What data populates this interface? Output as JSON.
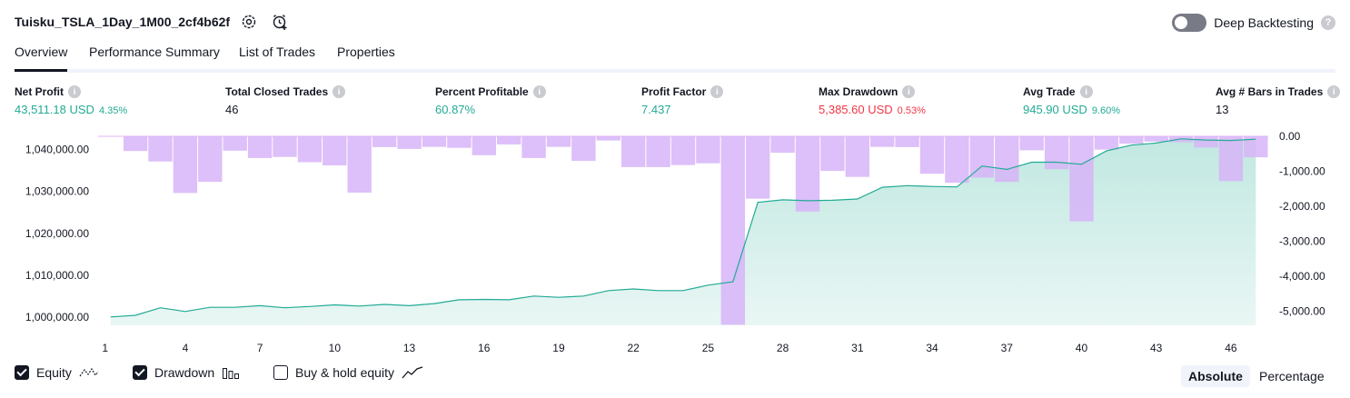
{
  "header": {
    "title": "Tuisku_TSLA_1Day_1M00_2cf4b62f",
    "deep_backtesting_label": "Deep Backtesting",
    "deep_backtesting_on": false
  },
  "tabs": [
    {
      "label": "Overview",
      "active": true
    },
    {
      "label": "Performance Summary",
      "active": false
    },
    {
      "label": "List of Trades",
      "active": false
    },
    {
      "label": "Properties",
      "active": false
    }
  ],
  "metrics": {
    "net_profit": {
      "label": "Net Profit",
      "value": "43,511.18 USD",
      "sub": "4.35%"
    },
    "total_closed_trades": {
      "label": "Total Closed Trades",
      "value": "46"
    },
    "percent_profitable": {
      "label": "Percent Profitable",
      "value": "60.87%"
    },
    "profit_factor": {
      "label": "Profit Factor",
      "value": "7.437"
    },
    "max_drawdown": {
      "label": "Max Drawdown",
      "value": "5,385.60 USD",
      "sub": "0.53%"
    },
    "avg_trade": {
      "label": "Avg Trade",
      "value": "945.90 USD",
      "sub": "9.60%"
    },
    "avg_bars": {
      "label": "Avg # Bars in Trades",
      "value": "13"
    }
  },
  "colors": {
    "positive": "#22ab94",
    "negative": "#f23645",
    "equity_line": "#22ab94",
    "equity_fill": "#22ab94",
    "drawdown_fill": "#d7b4f8"
  },
  "chart_data": {
    "type": "line",
    "x_ticks": [
      "1",
      "4",
      "7",
      "10",
      "13",
      "16",
      "19",
      "22",
      "25",
      "28",
      "31",
      "34",
      "37",
      "40",
      "43",
      "46"
    ],
    "left_axis": {
      "ticks": [
        "1,000,000.00",
        "1,010,000.00",
        "1,020,000.00",
        "1,030,000.00",
        "1,040,000.00"
      ],
      "ylim": [
        998000,
        1043200
      ]
    },
    "right_axis": {
      "ticks": [
        "0.00",
        "-1,000.00",
        "-2,000.00",
        "-3,000.00",
        "-4,000.00",
        "-5,000.00"
      ],
      "ylim": [
        -5400,
        0
      ]
    },
    "x": [
      1,
      2,
      3,
      4,
      5,
      6,
      7,
      8,
      9,
      10,
      11,
      12,
      13,
      14,
      15,
      16,
      17,
      18,
      19,
      20,
      21,
      22,
      23,
      24,
      25,
      26,
      27,
      28,
      29,
      30,
      31,
      32,
      33,
      34,
      35,
      36,
      37,
      38,
      39,
      40,
      41,
      42,
      43,
      44,
      45,
      46,
      47
    ],
    "series": [
      {
        "name": "Equity",
        "axis": "left",
        "values": [
          1000000,
          1000400,
          1002200,
          1001300,
          1002300,
          1002300,
          1002700,
          1002200,
          1002500,
          1002900,
          1002600,
          1003000,
          1002700,
          1003200,
          1004100,
          1004200,
          1004100,
          1005000,
          1004700,
          1005000,
          1006300,
          1006700,
          1006300,
          1006300,
          1007600,
          1008400,
          1027400,
          1028000,
          1027800,
          1027900,
          1028200,
          1031000,
          1031400,
          1031200,
          1031100,
          1036100,
          1035300,
          1037000,
          1037000,
          1036500,
          1039700,
          1041100,
          1041600,
          1042600,
          1042300,
          1042200,
          1042500
        ]
      },
      {
        "name": "Drawdown",
        "axis": "right",
        "values": [
          0,
          -420,
          -720,
          -1620,
          -1300,
          -410,
          -620,
          -590,
          -740,
          -830,
          -1610,
          -310,
          -360,
          -300,
          -330,
          -540,
          -230,
          -620,
          -300,
          -700,
          -120,
          -880,
          -880,
          -820,
          -770,
          -5385,
          -1780,
          -470,
          -2150,
          -990,
          -1160,
          -300,
          -310,
          -1070,
          -1330,
          -1180,
          -1300,
          -400,
          -940,
          -2430,
          -380,
          -210,
          -150,
          -170,
          -320,
          -1280,
          -600
        ]
      }
    ]
  },
  "legend": {
    "equity": {
      "label": "Equity",
      "checked": true
    },
    "drawdown": {
      "label": "Drawdown",
      "checked": true
    },
    "buy_hold": {
      "label": "Buy & hold equity",
      "checked": false
    }
  },
  "view_buttons": {
    "absolute": "Absolute",
    "percentage": "Percentage",
    "active": "absolute"
  }
}
